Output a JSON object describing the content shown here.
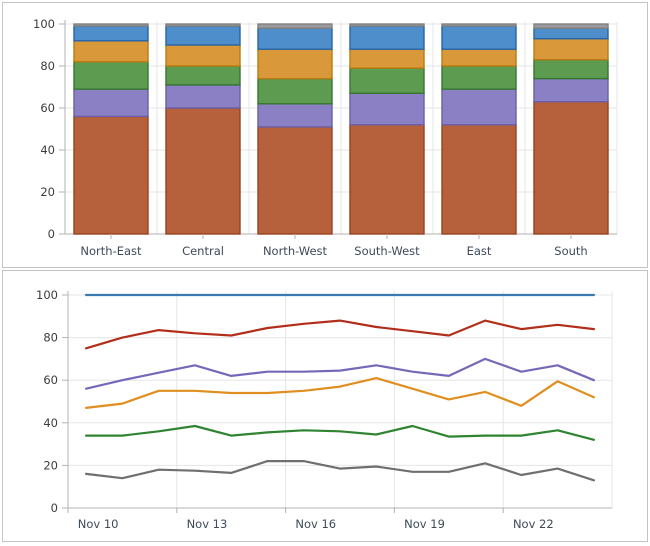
{
  "theme": {
    "background": "#ffffff",
    "panel_border": "#c3c3c3",
    "grid_color": "#e5e5e5",
    "axis_color": "#b3b3b3",
    "ytick_label_color": "#3c3c3c",
    "xtick_label_color": "#3e4a58"
  },
  "chart_data": [
    {
      "type": "bar",
      "stacked": true,
      "title": "",
      "xlabel": "",
      "ylabel": "",
      "ylim": [
        0,
        100
      ],
      "yticks": [
        0,
        20,
        40,
        60,
        80,
        100
      ],
      "grid": true,
      "legend_position": "none",
      "categories": [
        "North-East",
        "Central",
        "North-West",
        "South-West",
        "East",
        "South"
      ],
      "series": [
        {
          "name": "segment-brick",
          "color": "#b6613b",
          "border": "#96431f",
          "values": [
            56,
            60,
            51,
            52,
            52,
            63
          ]
        },
        {
          "name": "segment-purple",
          "color": "#8b80c3",
          "border": "#6a5fa8",
          "values": [
            13,
            11,
            11,
            15,
            17,
            11
          ]
        },
        {
          "name": "segment-green",
          "color": "#5d9b50",
          "border": "#35772e",
          "values": [
            13,
            9,
            12,
            12,
            11,
            9
          ]
        },
        {
          "name": "segment-orange",
          "color": "#d9993b",
          "border": "#bb7a10",
          "values": [
            10,
            10,
            14,
            9,
            8,
            10
          ]
        },
        {
          "name": "segment-blue",
          "color": "#4d8ecb",
          "border": "#2565ab",
          "values": [
            7,
            9,
            10,
            11,
            11,
            5
          ]
        },
        {
          "name": "segment-gray",
          "color": "#9b9b9b",
          "border": "#808080",
          "values": [
            1,
            1,
            2,
            1,
            1,
            2
          ]
        }
      ]
    },
    {
      "type": "line",
      "title": "",
      "xlabel": "",
      "ylabel": "",
      "ylim": [
        0,
        100
      ],
      "yticks": [
        0,
        20,
        40,
        60,
        80,
        100
      ],
      "grid": true,
      "legend_position": "none",
      "x": [
        "Nov 10",
        "Nov 11",
        "Nov 12",
        "Nov 13",
        "Nov 14",
        "Nov 15",
        "Nov 16",
        "Nov 17",
        "Nov 18",
        "Nov 19",
        "Nov 20",
        "Nov 21",
        "Nov 22",
        "Nov 23",
        "Nov 24"
      ],
      "xtick_every": 3,
      "xtick_labels": [
        "Nov 10",
        "Nov 13",
        "Nov 16",
        "Nov 19",
        "Nov 22"
      ],
      "series": [
        {
          "name": "line-blue",
          "color": "#3a7ab0",
          "values": [
            100,
            100,
            100,
            100,
            100,
            100,
            100,
            100,
            100,
            100,
            100,
            100,
            100,
            100,
            100
          ]
        },
        {
          "name": "line-red",
          "color": "#b22e1a",
          "values": [
            75,
            80,
            83.5,
            82,
            81,
            84.5,
            86.5,
            88,
            85,
            83,
            81,
            88,
            84,
            86,
            84
          ]
        },
        {
          "name": "line-purple",
          "color": "#7668b8",
          "values": [
            56,
            60,
            63.5,
            67,
            62,
            64,
            64,
            64.5,
            67,
            64,
            62,
            70,
            64,
            67,
            60
          ]
        },
        {
          "name": "line-orange",
          "color": "#e08e20",
          "values": [
            47,
            49,
            55,
            55,
            54,
            54,
            55,
            57,
            61,
            56,
            51,
            54.5,
            48,
            59.5,
            52
          ]
        },
        {
          "name": "line-green",
          "color": "#2f8432",
          "values": [
            34,
            34,
            36,
            38.5,
            34,
            35.5,
            36.5,
            36,
            34.5,
            38.5,
            33.5,
            34,
            34,
            36.5,
            32
          ]
        },
        {
          "name": "line-gray",
          "color": "#6f6f6f",
          "values": [
            16,
            14,
            18,
            17.5,
            16.5,
            22,
            22,
            18.5,
            19.5,
            17,
            17,
            21,
            15.5,
            18.5,
            13
          ]
        }
      ]
    }
  ]
}
